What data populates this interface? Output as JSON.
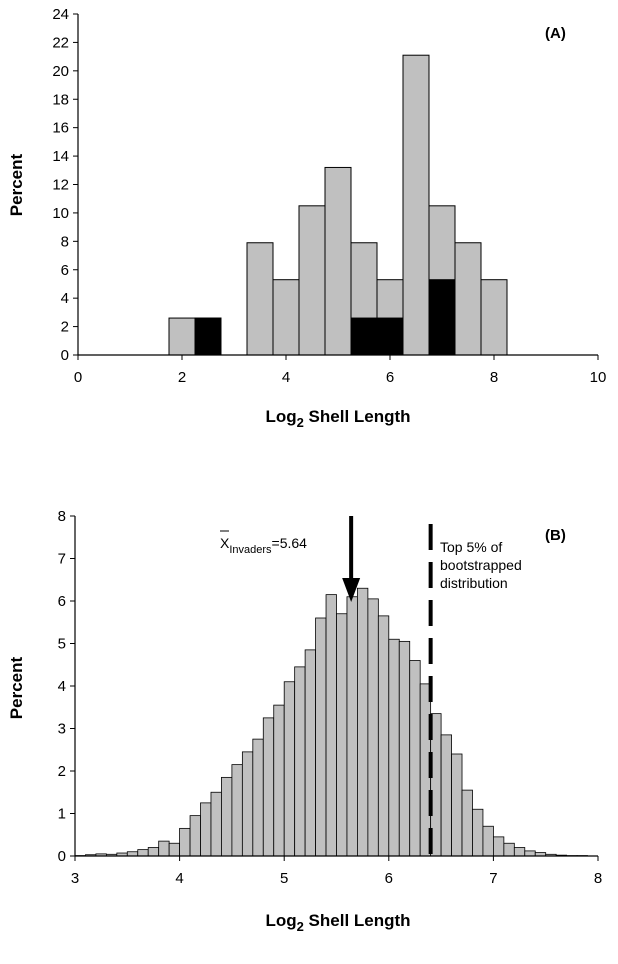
{
  "chart_data": [
    {
      "type": "bar",
      "panel_label": "(A)",
      "xlabel": "Log",
      "xlabel_sub": "2",
      "xlabel_rest": " Shell Length",
      "ylabel": "Percent",
      "xlim": [
        0,
        10
      ],
      "ylim": [
        0,
        24
      ],
      "xticks": [
        0,
        2,
        4,
        6,
        8,
        10
      ],
      "yticks": [
        0,
        2,
        4,
        6,
        8,
        10,
        12,
        14,
        16,
        18,
        20,
        22,
        24
      ],
      "bin_width": 0.5,
      "colors": {
        "gray": "#c0c0c0",
        "black": "#000000"
      },
      "series": [
        {
          "color": "gray",
          "bins": [
            {
              "x0": 1.75,
              "value": 2.6
            },
            {
              "x0": 2.25,
              "value": 2.6
            },
            {
              "x0": 3.25,
              "value": 7.9
            },
            {
              "x0": 3.75,
              "value": 5.3
            },
            {
              "x0": 4.25,
              "value": 10.5
            },
            {
              "x0": 4.75,
              "value": 13.2
            },
            {
              "x0": 5.25,
              "value": 7.9
            },
            {
              "x0": 5.75,
              "value": 5.3
            },
            {
              "x0": 6.25,
              "value": 21.1
            },
            {
              "x0": 6.75,
              "value": 10.5
            },
            {
              "x0": 7.25,
              "value": 7.9
            },
            {
              "x0": 7.75,
              "value": 5.3
            }
          ]
        },
        {
          "color": "black",
          "bins": [
            {
              "x0": 2.25,
              "value": 2.6
            },
            {
              "x0": 5.25,
              "value": 2.6
            },
            {
              "x0": 5.75,
              "value": 2.6
            },
            {
              "x0": 6.75,
              "value": 5.3
            }
          ]
        }
      ]
    },
    {
      "type": "bar",
      "panel_label": "(B)",
      "xlabel": "Log",
      "xlabel_sub": "2",
      "xlabel_rest": " Shell Length",
      "ylabel": "Percent",
      "xlim": [
        3,
        8
      ],
      "ylim": [
        0,
        8
      ],
      "xticks": [
        3,
        4,
        5,
        6,
        7,
        8
      ],
      "yticks": [
        0,
        1,
        2,
        3,
        4,
        5,
        6,
        7,
        8
      ],
      "bin_start": 3.0,
      "bin_width": 0.1,
      "values": [
        0.01,
        0.03,
        0.05,
        0.04,
        0.07,
        0.1,
        0.15,
        0.2,
        0.35,
        0.3,
        0.65,
        0.95,
        1.25,
        1.5,
        1.85,
        2.15,
        2.45,
        2.75,
        3.25,
        3.55,
        4.1,
        4.45,
        4.85,
        5.6,
        6.15,
        5.7,
        6.1,
        6.3,
        6.05,
        5.65,
        5.1,
        5.05,
        4.6,
        4.05,
        3.35,
        2.85,
        2.4,
        1.55,
        1.1,
        0.7,
        0.45,
        0.3,
        0.2,
        0.12,
        0.08,
        0.04,
        0.02,
        0.01,
        0.01,
        0.0
      ],
      "mean_marker": {
        "x": 5.64,
        "label_prefix": "X",
        "label_sub": "Invaders",
        "label_value": "=5.64"
      },
      "threshold": {
        "x": 6.4,
        "label_lines": [
          "Top 5% of",
          "bootstrapped",
          "distribution"
        ]
      },
      "colors": {
        "bar": "#c0c0c0",
        "edge": "#000000"
      }
    }
  ]
}
